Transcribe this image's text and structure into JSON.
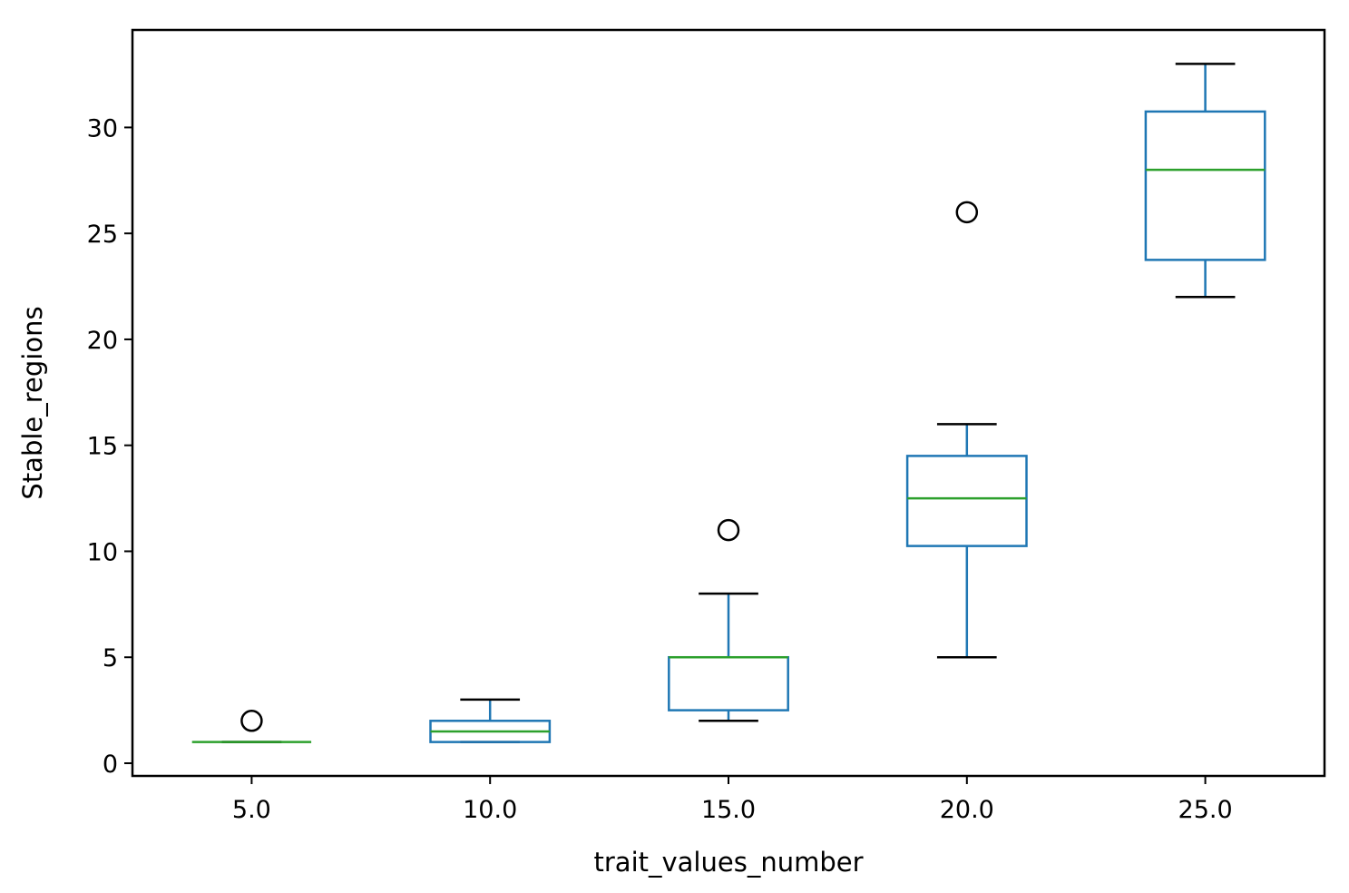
{
  "chart_data": {
    "type": "box",
    "title": "",
    "xlabel": "trait_values_number",
    "ylabel": "Stable_regions",
    "ylim": [
      -0.6,
      34.6
    ],
    "yticks": [
      0,
      5,
      10,
      15,
      20,
      25,
      30
    ],
    "categories": [
      "5.0",
      "10.0",
      "15.0",
      "20.0",
      "25.0"
    ],
    "boxes": [
      {
        "whisker_low": 1,
        "q1": 1,
        "median": 1,
        "q3": 1,
        "whisker_high": 1,
        "outliers": [
          2
        ]
      },
      {
        "whisker_low": 1,
        "q1": 1,
        "median": 1.5,
        "q3": 2,
        "whisker_high": 3,
        "outliers": []
      },
      {
        "whisker_low": 2,
        "q1": 2.5,
        "median": 5,
        "q3": 5,
        "whisker_high": 8,
        "outliers": [
          11
        ]
      },
      {
        "whisker_low": 5,
        "q1": 10.25,
        "median": 12.5,
        "q3": 14.5,
        "whisker_high": 16,
        "outliers": [
          26
        ]
      },
      {
        "whisker_low": 22,
        "q1": 23.75,
        "median": 28,
        "q3": 30.75,
        "whisker_high": 33,
        "outliers": []
      }
    ],
    "grid": false,
    "colors": {
      "box": "#1f77b4",
      "median": "#2ca02c",
      "cap": "#000000",
      "outlier": "#000000",
      "axes": "#000000"
    }
  }
}
